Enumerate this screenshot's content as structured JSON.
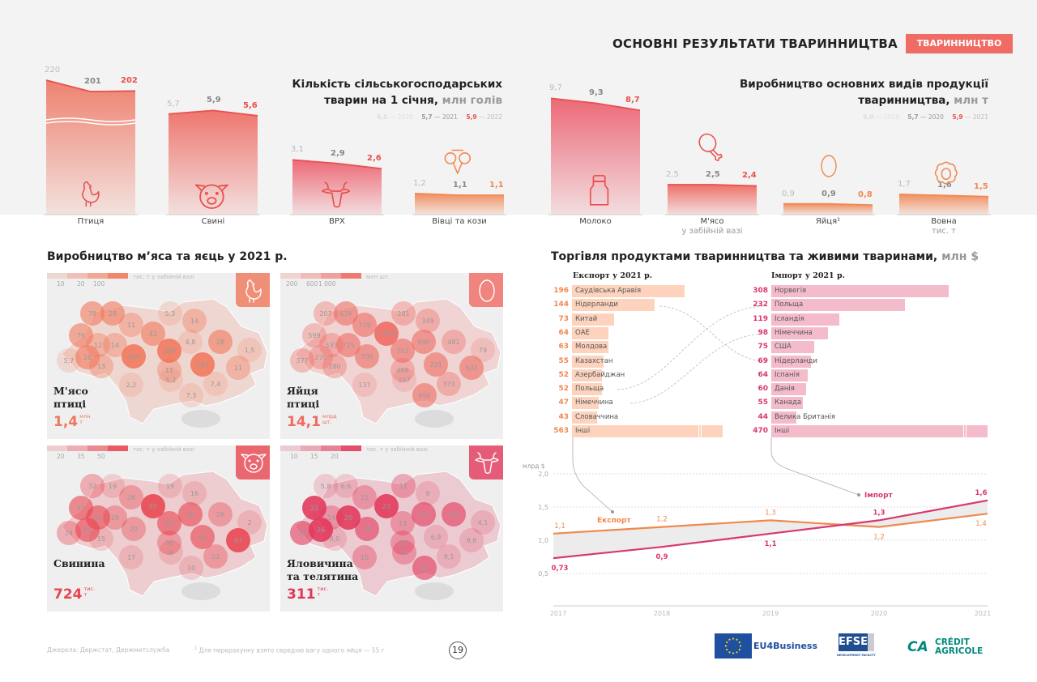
{
  "header": {
    "title": "ОСНОВНІ РЕЗУЛЬТАТИ ТВАРИННИЦТВА",
    "tag": "ТВАРИННИЦТВО",
    "accent": "#ef6b63"
  },
  "livestock": {
    "title_line1": "Кількість сільськогосподарських",
    "title_line2": "тварин на 1 січня,",
    "unit": "млн голів",
    "legend": [
      {
        "value": "6,0",
        "year": "2020"
      },
      {
        "value": "5,7",
        "year": "2021"
      },
      {
        "value": "5,9",
        "year": "2022"
      }
    ],
    "items": [
      {
        "label": "Птиця",
        "values": [
          "220",
          "201",
          "202"
        ],
        "axis_break": true,
        "icon": "chicken-icon",
        "color": "#ee7c68",
        "last_color": "#e8504f"
      },
      {
        "label": "Свині",
        "values": [
          "5,7",
          "5,9",
          "5,6"
        ],
        "icon": "pig-icon",
        "color": "#ee7068",
        "last_color": "#e8504f"
      },
      {
        "label": "ВРХ",
        "values": [
          "3,1",
          "2,9",
          "2,6"
        ],
        "icon": "cow-icon",
        "color": "#ec6270",
        "last_color": "#e8504f"
      },
      {
        "label": "Вівці та кози",
        "values": [
          "1,2",
          "1,1",
          "1,1"
        ],
        "icon": "ram-icon",
        "color": "#f08a5a",
        "last_color": "#f0894f"
      }
    ]
  },
  "production": {
    "title_line1": "Виробництво основних видів продукції",
    "title_line2": "тваринництва,",
    "unit": "млн т",
    "legend": [
      {
        "value": "6,0",
        "year": "2019"
      },
      {
        "value": "5,7",
        "year": "2020"
      },
      {
        "value": "5,9",
        "year": "2021"
      }
    ],
    "items": [
      {
        "label": "Молоко",
        "values": [
          "9,7",
          "9,3",
          "8,7"
        ],
        "icon": "milk-can-icon",
        "color": "#ec6270",
        "last_color": "#e8504f"
      },
      {
        "label": "М'ясо",
        "sublabel": "у забійній вазі",
        "values": [
          "2,5",
          "2,5",
          "2,4"
        ],
        "icon": "drumstick-icon",
        "color": "#ee6a62",
        "last_color": "#e8504f"
      },
      {
        "label": "Яйця¹",
        "values": [
          "0,9",
          "0,9",
          "0,8"
        ],
        "icon": "egg-icon",
        "color": "#f08a5a",
        "last_color": "#f0894f"
      },
      {
        "label": "Вовна",
        "sublabel": "тис. т",
        "values": [
          "1,7",
          "1,6",
          "1,5"
        ],
        "icon": "sheep-icon",
        "color": "#f08a5a",
        "last_color": "#f0894f"
      }
    ]
  },
  "maps": {
    "title": "Виробництво м’яса та яєць у 2021 р.",
    "cards": [
      {
        "name": "М'ясо\nптиці",
        "total": "1,4",
        "total_unit1": "млн",
        "total_unit2": "т",
        "legend_ticks": [
          "10",
          "20",
          "100"
        ],
        "legend_unit": "тис. т у забійній вазі",
        "color": "#f0775a",
        "icon": "chicken-icon",
        "values": [
          "78",
          "28",
          "11",
          "5,3",
          "14",
          "76",
          "12",
          "14",
          "42",
          "4,8",
          "28",
          "1,5",
          "5,7",
          "28",
          "434",
          "294",
          "11",
          "241",
          "11",
          "13",
          "2,2",
          "5,2",
          "7,4",
          "7,3"
        ]
      },
      {
        "name": "Яйця\nптиці",
        "total": "14,1",
        "total_unit1": "млрд",
        "total_unit2": "шт.",
        "legend_ticks": [
          "200",
          "600",
          "1 000"
        ],
        "legend_unit": "млн шт.",
        "color": "#ef6a62",
        "icon": "egg-icon",
        "values": [
          "207",
          "634",
          "719",
          "281",
          "349",
          "599",
          "533",
          "725",
          "1 523",
          "690",
          "481",
          "79",
          "377",
          "276",
          "709",
          "753",
          "469",
          "721",
          "602",
          "280",
          "137",
          "157",
          "373",
          "698"
        ]
      },
      {
        "name": "Свинина",
        "total": "724",
        "total_unit1": "тис.",
        "total_unit2": "т",
        "legend_ticks": [
          "20",
          "35",
          "50"
        ],
        "legend_unit": "тис. т у забійній вазі",
        "color": "#e84550",
        "icon": "pig-icon",
        "values": [
          "32",
          "19",
          "26",
          "19",
          "16",
          "47",
          "41",
          "28",
          "65",
          "48",
          "26",
          "2",
          "24",
          "42",
          "20",
          "40",
          "30",
          "40",
          "67",
          "15",
          "17",
          "8",
          "23",
          "10"
        ]
      },
      {
        "name": "Яловичина\nта телятина",
        "total": "311",
        "total_unit1": "тис.",
        "total_unit2": "т",
        "legend_ticks": [
          "10",
          "15",
          "20"
        ],
        "legend_unit": "тис. т у забійній вазі",
        "color": "#e2375a",
        "icon": "cow-icon",
        "values": [
          "5,8",
          "6,6",
          "12",
          "11",
          "8",
          "22",
          "14",
          "20",
          "23",
          "15",
          "18",
          "4,1",
          "16",
          "26",
          "16",
          "13",
          "10",
          "6,9",
          "9,6",
          "8,0",
          "10",
          "10",
          "9,1",
          "16"
        ]
      }
    ]
  },
  "trade": {
    "title": "Торгівля продуктами тваринництва та живими тваринами,",
    "unit": "млн $",
    "export": {
      "header": "Експорт у 2021 р.",
      "color": "#fdd3bd",
      "num_color": "#f0894f",
      "rows": [
        {
          "value": 196,
          "country": "Саудівська Аравія"
        },
        {
          "value": 144,
          "country": "Нідерланди"
        },
        {
          "value": 73,
          "country": "Китай"
        },
        {
          "value": 64,
          "country": "ОАЕ"
        },
        {
          "value": 63,
          "country": "Молдова"
        },
        {
          "value": 55,
          "country": "Казахстан"
        },
        {
          "value": 52,
          "country": "Азербайджан"
        },
        {
          "value": 52,
          "country": "Польща"
        },
        {
          "value": 47,
          "country": "Німеччина"
        },
        {
          "value": 43,
          "country": "Словаччина"
        },
        {
          "value": 563,
          "country": "Інші",
          "axis_break": true
        }
      ]
    },
    "import": {
      "header": "Імпорт у 2021 р.",
      "color": "#f4bccb",
      "num_color": "#d9386a",
      "rows": [
        {
          "value": 308,
          "country": "Норвегія"
        },
        {
          "value": 232,
          "country": "Польща"
        },
        {
          "value": 119,
          "country": "Ісландія"
        },
        {
          "value": 98,
          "country": "Німеччина"
        },
        {
          "value": 75,
          "country": "США"
        },
        {
          "value": 69,
          "country": "Нідерланди"
        },
        {
          "value": 64,
          "country": "Іспанія"
        },
        {
          "value": 60,
          "country": "Данія"
        },
        {
          "value": 55,
          "country": "Канада"
        },
        {
          "value": 44,
          "country": "Велика Британія"
        },
        {
          "value": 470,
          "country": "Інші",
          "axis_break": true
        }
      ]
    }
  },
  "chart_data": {
    "type": "line",
    "ylabel": "млрд $",
    "yticks": [
      "2,0",
      "1,5",
      "1,0",
      "0,5"
    ],
    "ylim": [
      0,
      2
    ],
    "grid": true,
    "x": [
      "2017",
      "2018",
      "2019",
      "2020",
      "2021"
    ],
    "series": [
      {
        "name": "Експорт",
        "color": "#f0894f",
        "values": [
          1.1,
          1.2,
          1.3,
          1.2,
          1.4
        ],
        "labels": [
          "1,1",
          "1,2",
          "1,3",
          "1,2",
          "1,4"
        ]
      },
      {
        "name": "Імпорт",
        "color": "#d9386a",
        "values": [
          0.73,
          0.9,
          1.1,
          1.3,
          1.6
        ],
        "labels": [
          "0,73",
          "0,9",
          "1,1",
          "1,3",
          "1,6"
        ]
      }
    ]
  },
  "footer": {
    "source": "Джерела: Держстат, Держмитслужба",
    "footnote_mark": "1",
    "footnote": "Для перерахунку взято середню вагу одного яйця — 55 г",
    "page": "19",
    "logos": {
      "eu": "EU4Business",
      "efse": "EFSE",
      "efse_sub": "DEVELOPMENT FACILITY",
      "ca1": "CRÉDIT",
      "ca2": "AGRICOLE"
    }
  }
}
